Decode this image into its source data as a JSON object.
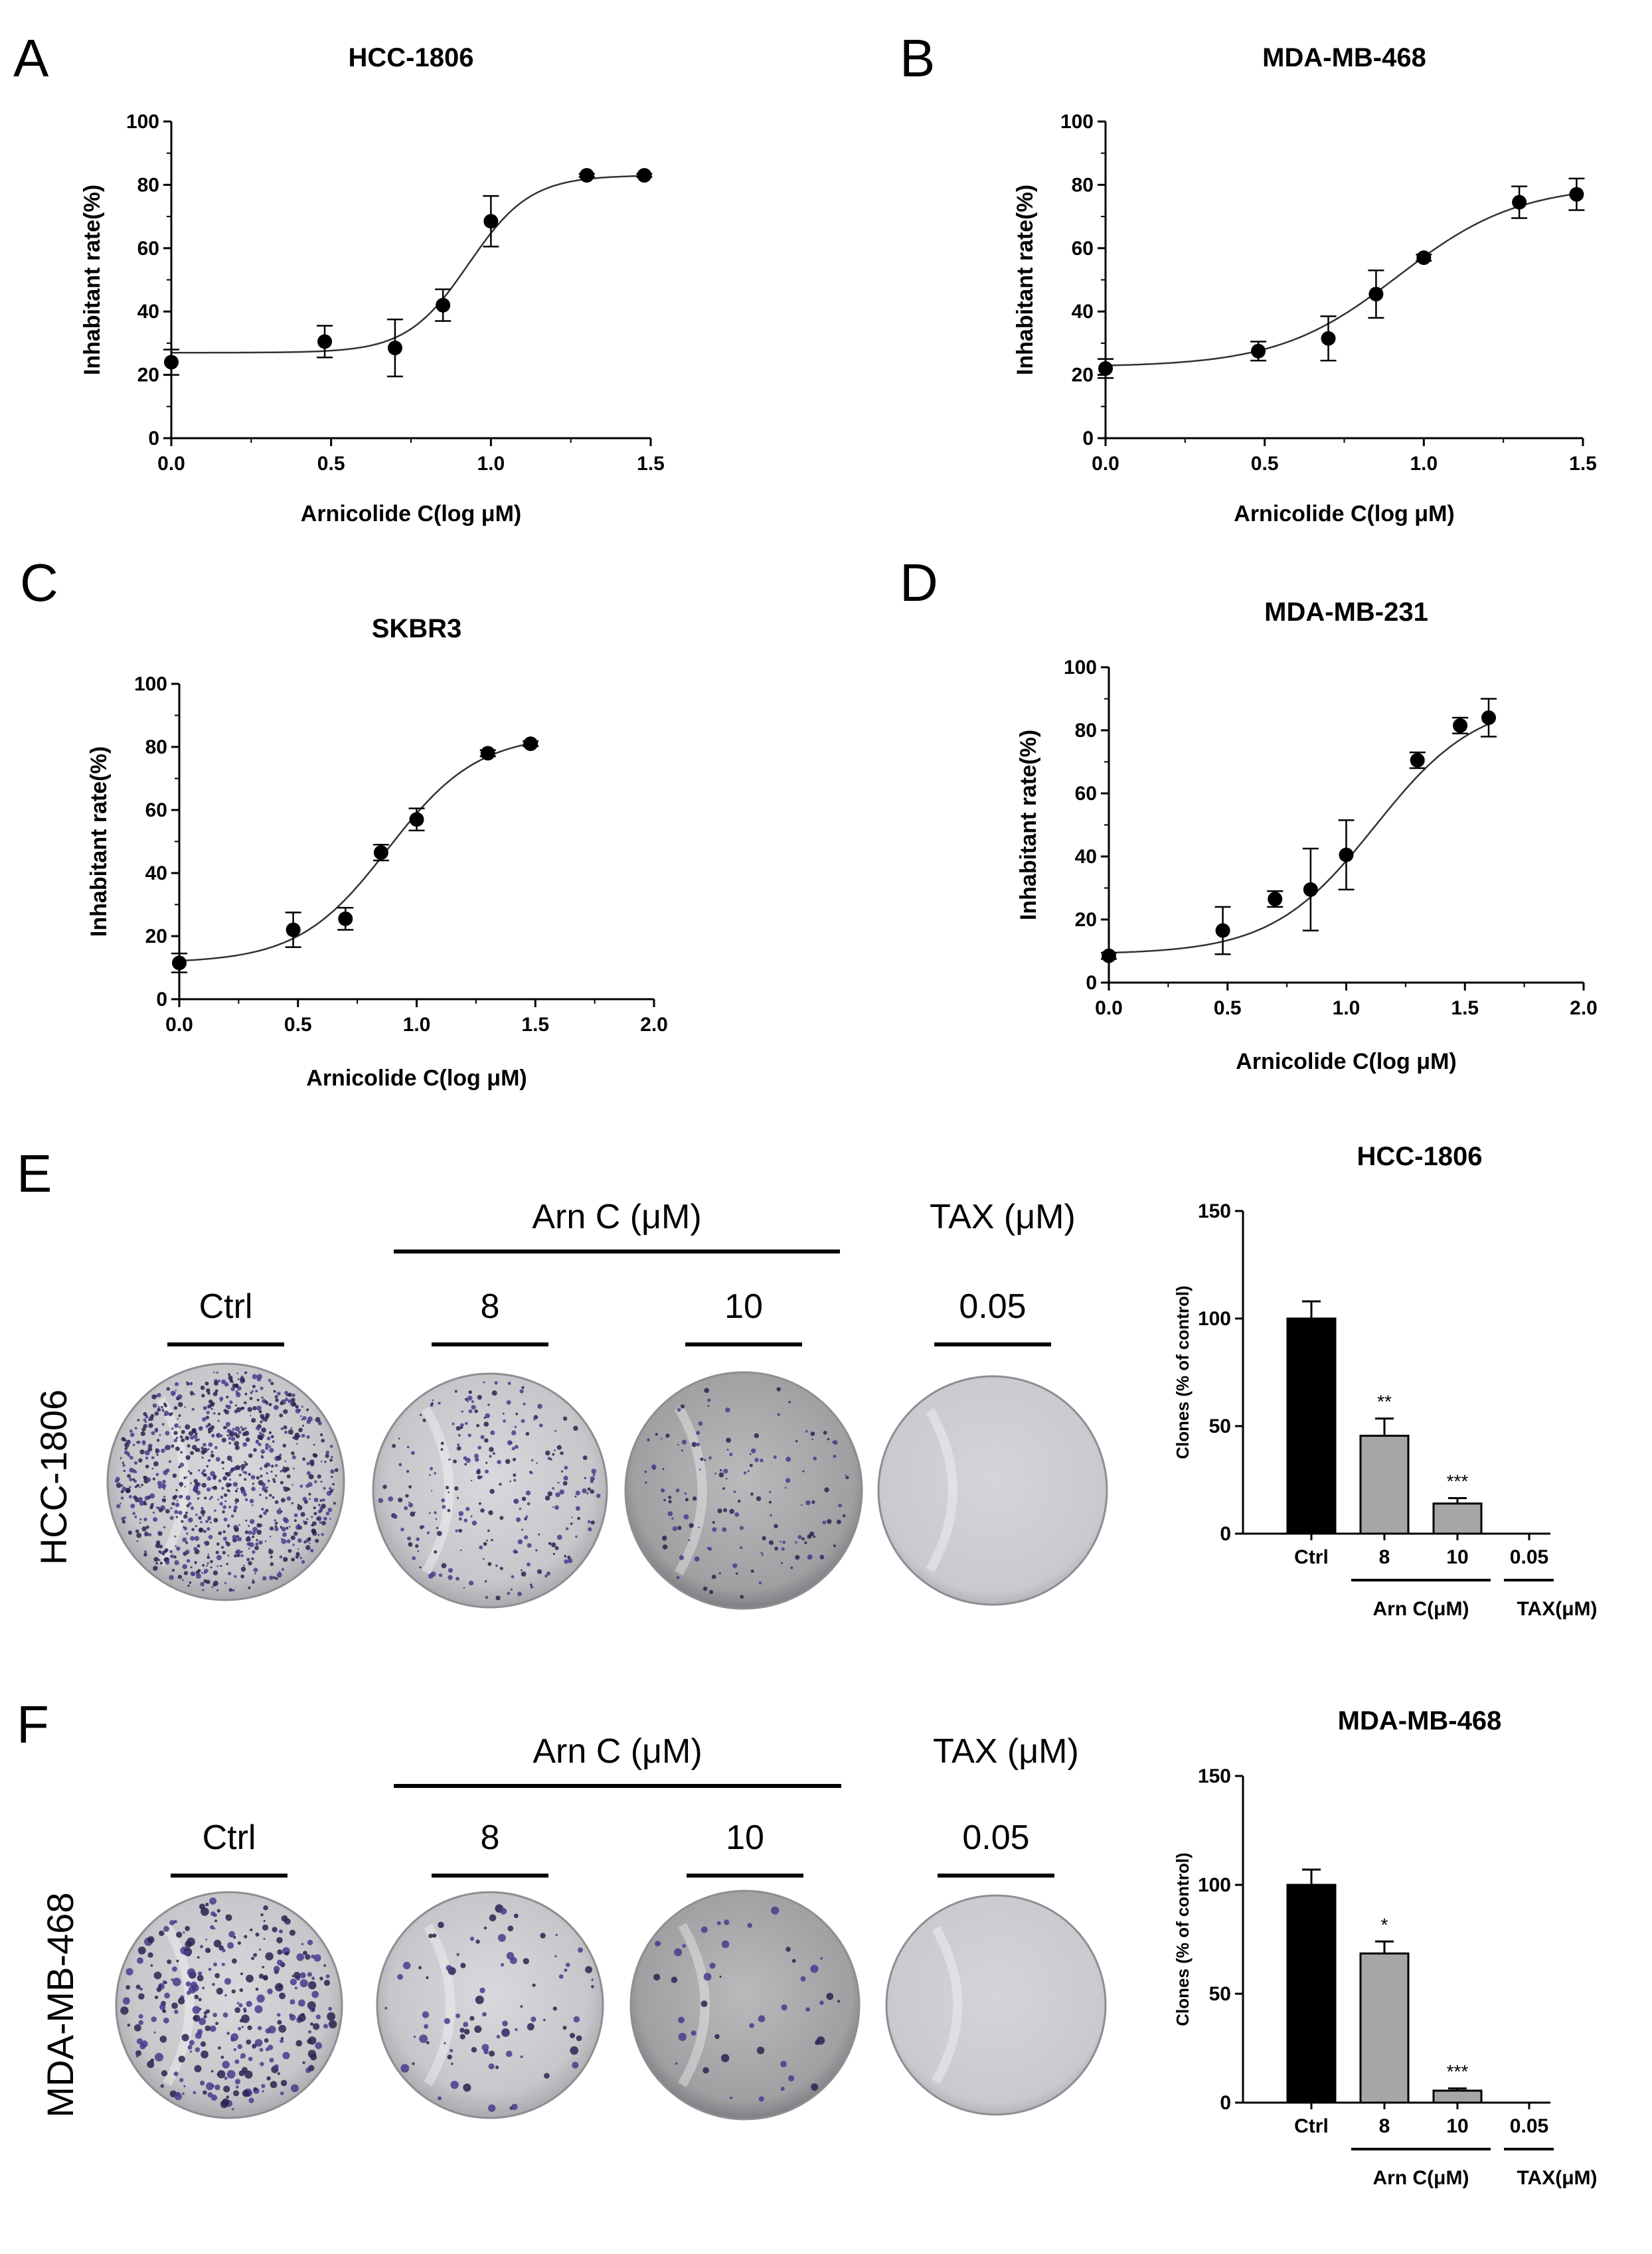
{
  "figure": {
    "panels": {
      "A": "A",
      "B": "B",
      "C": "C",
      "D": "D",
      "E": "E",
      "F": "F"
    }
  },
  "chart_data": [
    {
      "id": "A",
      "type": "scatter",
      "title": "HCC-1806",
      "xlabel": "Arnicolide C(log μM)",
      "ylabel": "Inhabitant rate(%)",
      "xlim": [
        0,
        1.5
      ],
      "ylim": [
        0,
        100
      ],
      "xticks": [
        "0.0",
        "0.5",
        "1.0",
        "1.5"
      ],
      "yticks": [
        "0",
        "20",
        "40",
        "60",
        "80",
        "100"
      ],
      "x": [
        0.0,
        0.48,
        0.7,
        0.85,
        1.0,
        1.3,
        1.48
      ],
      "y": [
        24,
        30.5,
        28.5,
        42,
        68.5,
        83,
        83
      ],
      "err": [
        4,
        5,
        9,
        5,
        8,
        0.5,
        0.5
      ],
      "fit": {
        "bottom": 27,
        "top": 83,
        "logEC50": 0.93,
        "hill": 4.5
      }
    },
    {
      "id": "B",
      "type": "scatter",
      "title": "MDA-MB-468",
      "xlabel": "Arnicolide C(log μM)",
      "ylabel": "Inhabitant rate(%)",
      "xlim": [
        0,
        1.5
      ],
      "ylim": [
        0,
        100
      ],
      "xticks": [
        "0.0",
        "0.5",
        "1.0",
        "1.5"
      ],
      "yticks": [
        "0",
        "20",
        "40",
        "60",
        "80",
        "100"
      ],
      "x": [
        0.0,
        0.48,
        0.7,
        0.85,
        1.0,
        1.3,
        1.48
      ],
      "y": [
        22,
        27.5,
        31.5,
        45.5,
        57,
        74.5,
        77
      ],
      "err": [
        3,
        3,
        7,
        7.5,
        1,
        5,
        5
      ],
      "fit": {
        "bottom": 22.5,
        "top": 80,
        "logEC50": 0.92,
        "hill": 2.3
      }
    },
    {
      "id": "C",
      "type": "scatter",
      "title": "SKBR3",
      "xlabel": "Arnicolide C(log μM)",
      "ylabel": "Inhabitant rate(%)",
      "xlim": [
        0,
        2.0
      ],
      "ylim": [
        0,
        100
      ],
      "xticks": [
        "0.0",
        "0.5",
        "1.0",
        "1.5",
        "2.0"
      ],
      "yticks": [
        "0",
        "20",
        "40",
        "60",
        "80",
        "100"
      ],
      "x": [
        0.0,
        0.48,
        0.7,
        0.85,
        1.0,
        1.3,
        1.48
      ],
      "y": [
        11.5,
        22,
        25.5,
        46.5,
        57,
        78,
        81
      ],
      "err": [
        3,
        5.5,
        3.5,
        2.5,
        3.5,
        1,
        0.8
      ],
      "fit": {
        "bottom": 11.5,
        "top": 84,
        "logEC50": 0.88,
        "hill": 2.3
      }
    },
    {
      "id": "D",
      "type": "scatter",
      "title": "MDA-MB-231",
      "xlabel": "Arnicolide C(log μM)",
      "ylabel": "Inhabitant rate(%)",
      "xlim": [
        0,
        2.0
      ],
      "ylim": [
        0,
        100
      ],
      "xticks": [
        "0.0",
        "0.5",
        "1.0",
        "1.5",
        "2.0"
      ],
      "yticks": [
        "0",
        "20",
        "40",
        "60",
        "80",
        "100"
      ],
      "x": [
        0.0,
        0.48,
        0.7,
        0.85,
        1.0,
        1.3,
        1.48,
        1.6
      ],
      "y": [
        8.5,
        16.5,
        26.5,
        29.5,
        40.5,
        70.5,
        81.5,
        84
      ],
      "err": [
        1,
        7.5,
        2.5,
        13,
        11,
        2.5,
        2.5,
        6
      ],
      "fit": {
        "bottom": 9,
        "top": 90,
        "logEC50": 1.12,
        "hill": 2.0
      }
    },
    {
      "id": "E-bar",
      "type": "bar",
      "title": "HCC-1806",
      "ylabel": "Clones (% of control)",
      "ylim": [
        0,
        150
      ],
      "yticks": [
        "0",
        "50",
        "100",
        "150"
      ],
      "categories": [
        "Ctrl",
        "8",
        "10",
        "0.05"
      ],
      "values": [
        100,
        45.5,
        14,
        0
      ],
      "err": [
        8,
        8,
        2.5,
        0
      ],
      "colors": [
        "#000000",
        "#a6a6a6",
        "#a6a6a6",
        "#a6a6a6"
      ],
      "significance": [
        "",
        "**",
        "***",
        ""
      ],
      "groups": [
        {
          "label": "Arn C(μM)"
        },
        {
          "label": "TAX(μM)"
        }
      ]
    },
    {
      "id": "F-bar",
      "type": "bar",
      "title": "MDA-MB-468",
      "ylabel": "Clones (% of control)",
      "ylim": [
        0,
        150
      ],
      "yticks": [
        "0",
        "50",
        "100",
        "150"
      ],
      "categories": [
        "Ctrl",
        "8",
        "10",
        "0.05"
      ],
      "values": [
        100,
        68.5,
        5.5,
        0
      ],
      "err": [
        7,
        5.5,
        1,
        0
      ],
      "colors": [
        "#000000",
        "#a6a6a6",
        "#a6a6a6",
        "#a6a6a6"
      ],
      "significance": [
        "",
        "*",
        "***",
        ""
      ],
      "groups": [
        {
          "label": "Arn C(μM)"
        },
        {
          "label": "TAX(μM)"
        }
      ]
    }
  ],
  "colony_assay": {
    "E": {
      "row_label": "HCC-1806",
      "group_labels": [
        "Arn C (μM)",
        "TAX (μM)"
      ],
      "plate_labels": [
        "Ctrl",
        "8",
        "10",
        "0.05"
      ],
      "plate_density": [
        1.0,
        0.28,
        0.16,
        0.0
      ]
    },
    "F": {
      "row_label": "MDA-MB-468",
      "group_labels": [
        "Arn C (μM)",
        "TAX (μM)"
      ],
      "plate_labels": [
        "Ctrl",
        "8",
        "10",
        "0.05"
      ],
      "plate_density": [
        0.35,
        0.1,
        0.05,
        0.0
      ]
    }
  }
}
